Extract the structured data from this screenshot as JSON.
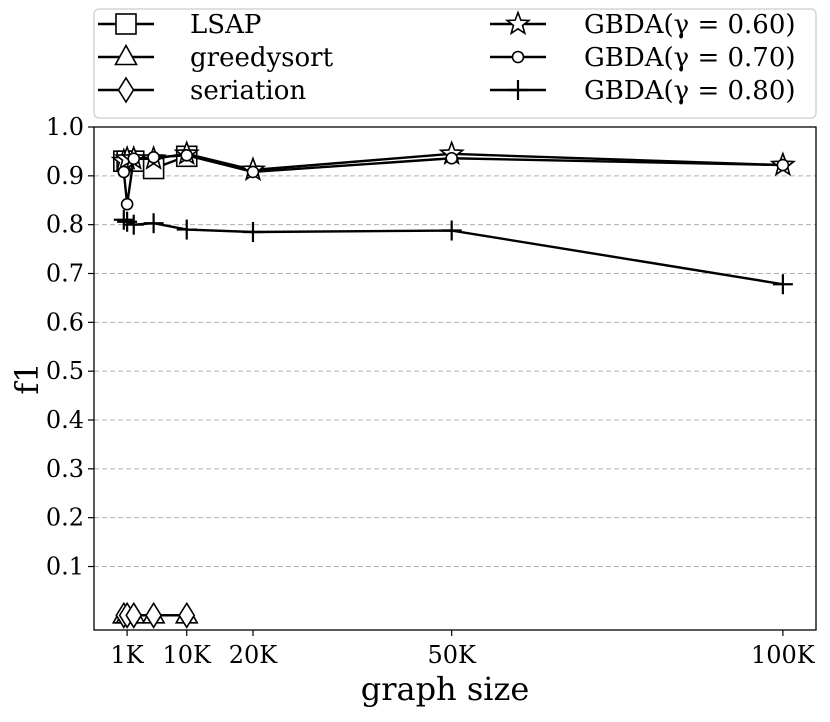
{
  "chart_data": {
    "type": "line",
    "title": "",
    "xlabel": "graph size",
    "ylabel": "f1",
    "x_tick_values": [
      1000,
      10000,
      20000,
      50000,
      100000
    ],
    "x_tick_labels": [
      "1K",
      "10K",
      "20K",
      "50K",
      "100K"
    ],
    "y_tick_values": [
      0.1,
      0.2,
      0.3,
      0.4,
      0.5,
      0.6,
      0.7,
      0.8,
      0.9,
      1.0
    ],
    "y_tick_labels": [
      "0.1",
      "0.2",
      "0.3",
      "0.4",
      "0.5",
      "0.6",
      "0.7",
      "0.8",
      "0.9",
      "1.0"
    ],
    "xlim": [
      -4000,
      105000
    ],
    "ylim": [
      -0.03,
      1.0
    ],
    "grid": "horizontal dashed",
    "legend_placement": "top, outside plot, two columns",
    "series": [
      {
        "name": "LSAP",
        "marker": "square",
        "x": [
          500,
          1000,
          2000,
          5000,
          10000
        ],
        "y": [
          0.93,
          0.93,
          0.93,
          0.915,
          0.94
        ]
      },
      {
        "name": "greedysort",
        "marker": "triangle",
        "x": [
          500,
          1000,
          2000,
          5000,
          10000
        ],
        "y": [
          0.0,
          0.0,
          0.0,
          0.0,
          0.0
        ]
      },
      {
        "name": "seriation",
        "marker": "diamond",
        "x": [
          500,
          1000,
          2000,
          5000,
          10000
        ],
        "y": [
          0.0,
          0.0,
          0.0,
          0.0,
          0.0
        ]
      },
      {
        "name": "GBDA(γ = 0.60)",
        "marker": "star",
        "x": [
          500,
          1000,
          2000,
          5000,
          10000,
          20000,
          50000,
          100000
        ],
        "y": [
          0.93,
          0.935,
          0.935,
          0.935,
          0.945,
          0.912,
          0.945,
          0.922
        ]
      },
      {
        "name": "GBDA(γ = 0.70)",
        "marker": "circle",
        "x": [
          500,
          1000,
          2000,
          5000,
          10000,
          20000,
          50000,
          100000
        ],
        "y": [
          0.908,
          0.842,
          0.935,
          0.938,
          0.942,
          0.908,
          0.936,
          0.922
        ]
      },
      {
        "name": "GBDA(γ = 0.80)",
        "marker": "plus",
        "x": [
          500,
          1000,
          2000,
          5000,
          10000,
          20000,
          50000,
          100000
        ],
        "y": [
          0.81,
          0.806,
          0.8,
          0.803,
          0.79,
          0.785,
          0.788,
          0.678
        ]
      }
    ]
  }
}
